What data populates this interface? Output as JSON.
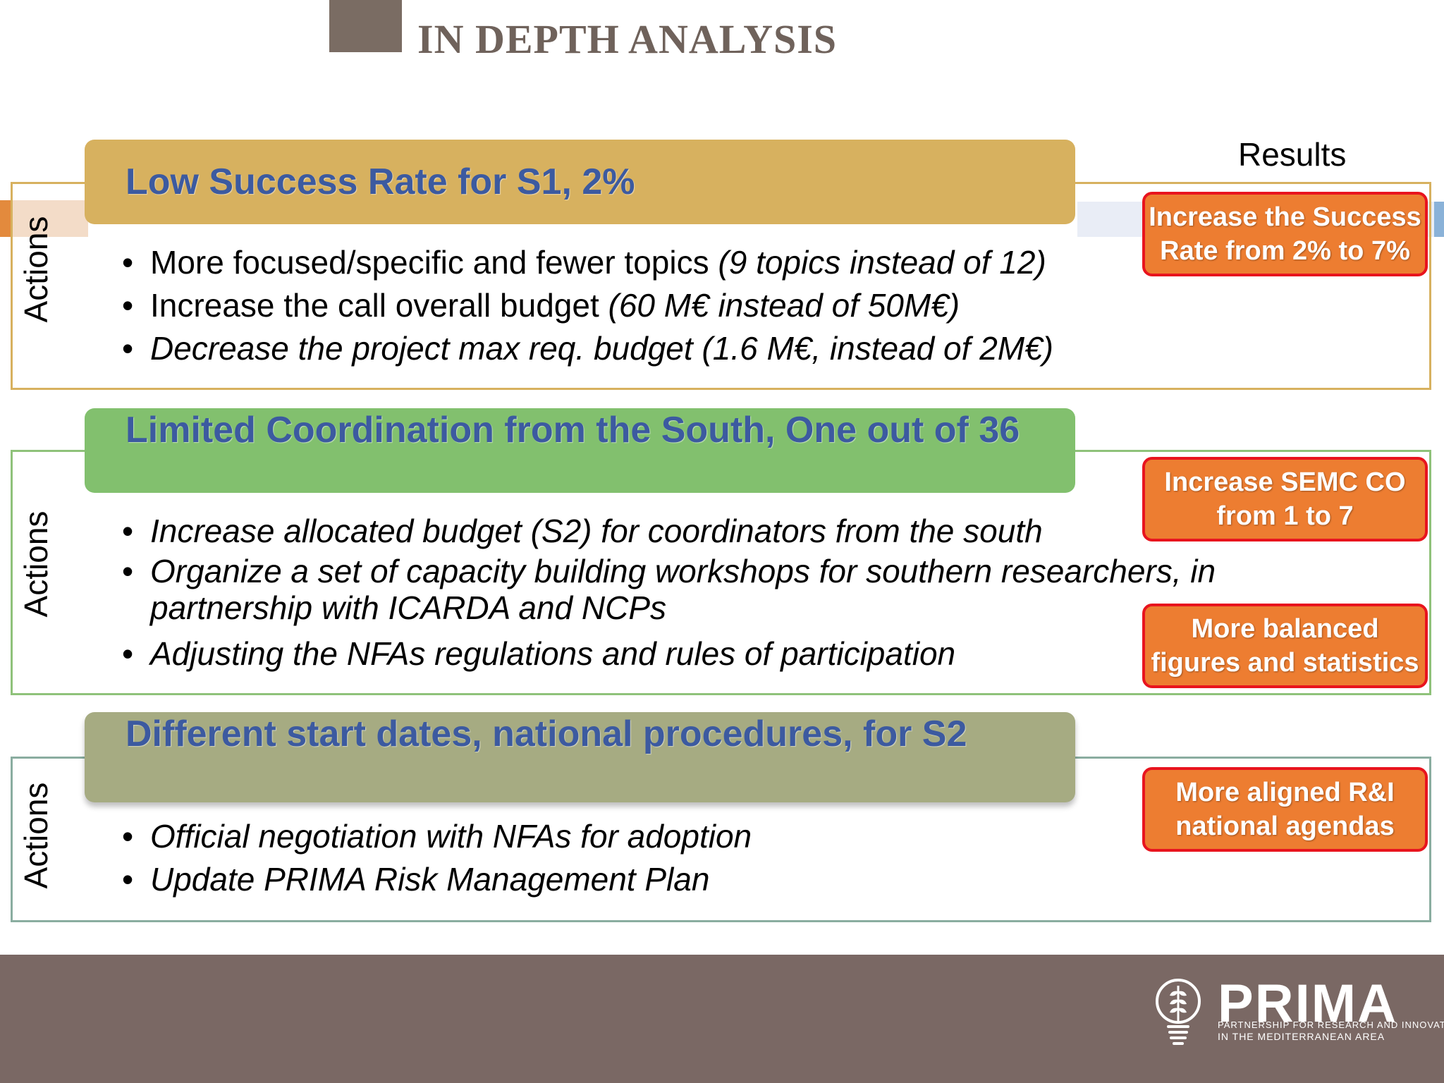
{
  "slide": {
    "title": "IN DEPTH ANALYSIS",
    "results_label": "Results"
  },
  "sections": [
    {
      "side_label": "Actions",
      "header": "Low Success Rate for S1, 2%",
      "header_color": "#d7b15f",
      "bullets": [
        {
          "plain": "More focused/specific and fewer topics ",
          "italic": "(9 topics instead of 12)"
        },
        {
          "plain": "Increase the call overall budget ",
          "italic": "(60 M€ instead of 50M€)"
        },
        {
          "plain": "",
          "italic": "Decrease the project max req. budget (1.6 M€, instead of 2M€)"
        }
      ],
      "results": [
        "Increase the Success Rate from 2% to 7%"
      ]
    },
    {
      "side_label": "Actions",
      "header": "Limited Coordination from the South, One out of 36",
      "header_color": "#82c06e",
      "bullets": [
        {
          "plain": "",
          "italic": "Increase allocated budget (S2) for coordinators from the south"
        },
        {
          "plain": "",
          "italic": "Organize a set of capacity building workshops for southern researchers, in partnership with ICARDA and NCPs"
        },
        {
          "plain": "",
          "italic": "Adjusting the NFAs regulations and rules of participation"
        }
      ],
      "results": [
        "Increase SEMC CO from 1 to 7",
        "More balanced figures and statistics"
      ]
    },
    {
      "side_label": "Actions",
      "header": "Different start dates, national procedures, for S2",
      "header_color": "#a6ab82",
      "bullets": [
        {
          "plain": "",
          "italic": "Official negotiation with NFAs for adoption"
        },
        {
          "plain": "",
          "italic": "Update PRIMA Risk Management Plan"
        }
      ],
      "results": [
        "More aligned R&I national agendas"
      ]
    }
  ],
  "footer": {
    "logo_name": "PRIMA",
    "logo_sub_line1": "PARTNERSHIP FOR RESEARCH AND INNOVATION",
    "logo_sub_line2": "IN THE MEDITERRANEAN AREA",
    "logo_icon": "wheat-lightbulb-icon",
    "background": "#7a6864"
  },
  "colors": {
    "result_fill": "#ed7d31",
    "result_border": "#e8141e",
    "header_text": "#3c5aa0"
  }
}
